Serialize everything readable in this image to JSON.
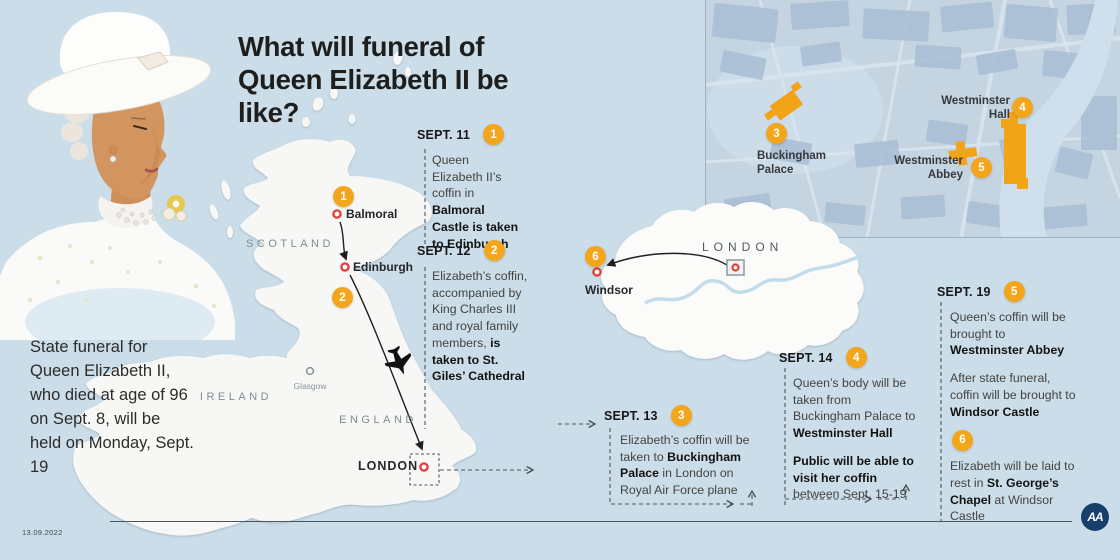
{
  "page": {
    "bg": "#cbdde9",
    "accent_orange": "#f3a51c",
    "marker_red": "#e0413a",
    "land": "#f7f8f5",
    "ink": "#1d1d1b"
  },
  "header": {
    "title": "What will funeral of Queen Elizabeth II be like?"
  },
  "intro": "State funeral for Queen Elizabeth II, who died at age of 96 on Sept. 8, will be held on Monday, Sept. 19",
  "footer": {
    "date": "13.09.2022",
    "logo": "AA"
  },
  "uk_map": {
    "scotland": "SCOTLAND",
    "england": "ENGLAND",
    "ireland": "IRELAND",
    "glasgow": "Glasgow",
    "balmoral": "Balmoral",
    "edinburgh": "Edinburgh",
    "london": "LONDON",
    "badge1": "1",
    "badge2": "2"
  },
  "london_map": {
    "label": "LONDON",
    "windsor": "Windsor",
    "badge6": "6"
  },
  "inset": {
    "buckingham": "Buckingham\nPalace",
    "westminster_hall": "Westminster\nHall",
    "westminster_abbey": "Westminster\nAbbey",
    "badge3": "3",
    "badge4": "4",
    "badge5": "5"
  },
  "timeline": [
    {
      "date": "SEPT. 11",
      "badge": "1",
      "paras": [
        [
          {
            "t": "Queen Elizabeth II’s coffin in "
          },
          {
            "t": "Balmoral Castle is taken to Edinburgh",
            "b": true
          }
        ]
      ]
    },
    {
      "date": "SEPT. 12",
      "badge": "2",
      "paras": [
        [
          {
            "t": "Elizabeth’s coffin, accompanied by King Charles III and royal family members, "
          },
          {
            "t": "is taken to St. Giles’ Cathedral",
            "b": true
          }
        ]
      ]
    },
    {
      "date": "SEPT. 13",
      "badge": "3",
      "paras": [
        [
          {
            "t": "Elizabeth’s coffin will be taken to "
          },
          {
            "t": "Buckingham Palace",
            "b": true
          },
          {
            "t": " in London on Royal Air Force plane"
          }
        ]
      ]
    },
    {
      "date": "SEPT. 14",
      "badge": "4",
      "paras": [
        [
          {
            "t": "Queen’s body will be taken from Buckingham Palace to "
          },
          {
            "t": "Westminster Hall",
            "b": true
          }
        ],
        [
          {
            "t": "Public will be able to visit her coffin",
            "b": true
          },
          {
            "t": " between Sept. 15-19"
          }
        ]
      ]
    },
    {
      "date": "SEPT. 19",
      "badge": "5",
      "badge2": "6",
      "paras": [
        [
          {
            "t": "Queen’s coffin will be brought to "
          },
          {
            "t": "Westminster Abbey",
            "b": true
          }
        ],
        [
          {
            "t": "After state funeral, coffin will be brought to "
          },
          {
            "t": "Windsor Castle",
            "b": true
          }
        ],
        [
          {
            "t": "Elizabeth will be laid to rest in "
          },
          {
            "t": "St. George’s Chapel",
            "b": true
          },
          {
            "t": " at Windsor Castle"
          }
        ]
      ]
    }
  ]
}
